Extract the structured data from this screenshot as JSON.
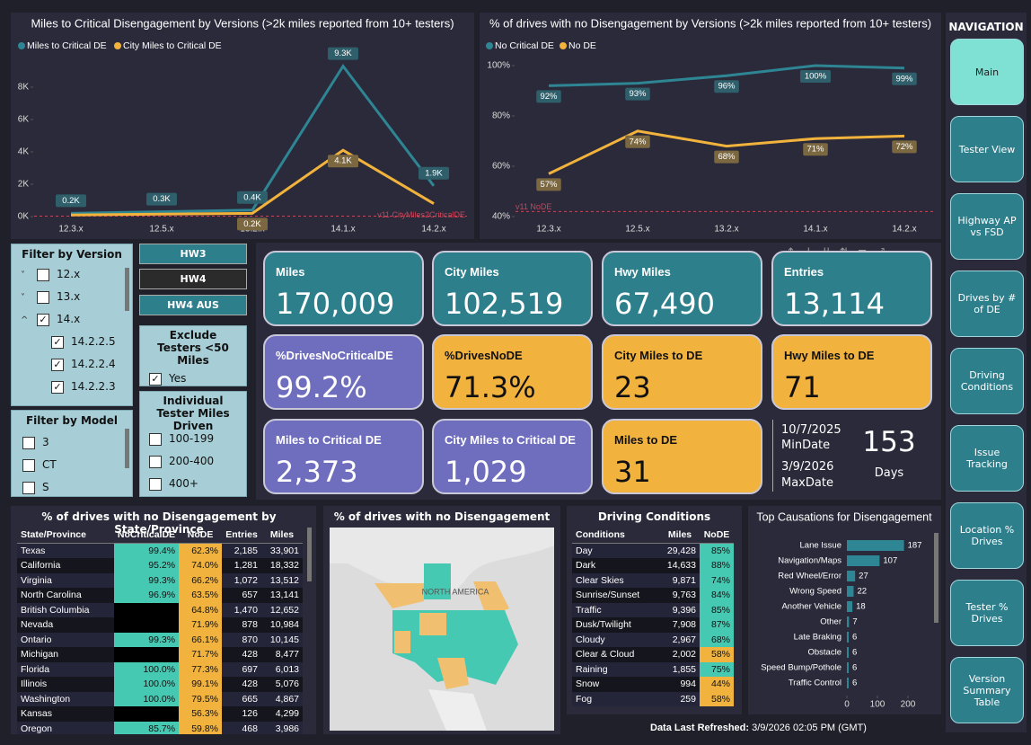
{
  "chart_data": [
    {
      "type": "line",
      "title": "Miles to Critical Disengagement by Versions (>2k miles reported from 10+ testers)",
      "categories": [
        "12.3.x",
        "12.5.x",
        "13.2.x",
        "14.1.x",
        "14.2.x"
      ],
      "series": [
        {
          "name": "Miles to Critical DE",
          "color": "#2e8593",
          "values": [
            200,
            300,
            400,
            9300,
            1900
          ],
          "value_labels": [
            "0.2K",
            "0.3K",
            "0.4K",
            "9.3K",
            "1.9K"
          ]
        },
        {
          "name": "City Miles to Critical DE",
          "color": "#f2b33d",
          "values": [
            100,
            150,
            200,
            4100,
            800
          ],
          "value_labels": [
            null,
            null,
            "0.2K",
            "4.1K",
            null
          ]
        }
      ],
      "ylim": [
        0,
        10000
      ],
      "yticks": [
        {
          "value": 0,
          "label": "0K"
        },
        {
          "value": 2000,
          "label": "2K"
        },
        {
          "value": 4000,
          "label": "4K"
        },
        {
          "value": 6000,
          "label": "6K"
        },
        {
          "value": 8000,
          "label": "8K"
        }
      ],
      "reference_line": {
        "label": "v11 CityMiles2CriticalDE",
        "value": 30,
        "color": "#c8455a"
      }
    },
    {
      "type": "line",
      "title": "% of drives with no Disengagement by Versions (>2k miles reported from 10+ testers)",
      "categories": [
        "12.3.x",
        "12.5.x",
        "13.2.x",
        "14.1.x",
        "14.2.x"
      ],
      "series": [
        {
          "name": "No Critical DE",
          "color": "#2e8593",
          "values": [
            92,
            93,
            96,
            100,
            99
          ],
          "value_labels": [
            "92%",
            "93%",
            "96%",
            "100%",
            "99%"
          ]
        },
        {
          "name": "No DE",
          "color": "#f2b33d",
          "values": [
            57,
            74,
            68,
            71,
            72
          ],
          "value_labels": [
            "57%",
            "74%",
            "68%",
            "71%",
            "72%"
          ]
        }
      ],
      "ylim": [
        40,
        100
      ],
      "yticks": [
        {
          "value": 40,
          "label": "40%"
        },
        {
          "value": 60,
          "label": "60%"
        },
        {
          "value": 80,
          "label": "80%"
        },
        {
          "value": 100,
          "label": "100%"
        }
      ],
      "reference_line": {
        "label": "v11 NoDE",
        "value": 42,
        "color": "#c8455a"
      }
    },
    {
      "type": "hbar",
      "title": "Top Causations for Disengagement",
      "categories": [
        "Lane Issue",
        "Navigation/Maps",
        "Red Wheel/Error",
        "Wrong Speed",
        "Another Vehicle",
        "Other",
        "Late Braking",
        "Obstacle",
        "Speed Bump/Pothole",
        "Traffic Control"
      ],
      "values": [
        187,
        107,
        27,
        22,
        18,
        7,
        6,
        6,
        6,
        6
      ],
      "color": "#2e8593",
      "xlim": [
        0,
        220
      ],
      "xticks": [
        0,
        100,
        200
      ]
    }
  ],
  "map": {
    "title": "% of drives with no Disengagement",
    "label": "NORTH AMERICA"
  },
  "navigation": {
    "title": "NAVIGATION",
    "items": [
      "Main",
      "Tester View",
      "Highway AP vs FSD",
      "Drives by # of DE",
      "Driving Conditions",
      "Issue Tracking",
      "Location % Drives",
      "Tester % Drives",
      "Version Summary Table"
    ]
  },
  "version_filter": {
    "title": "Filter by Version",
    "items": [
      "12.x",
      "13.x",
      "14.x",
      "14.2.2.5",
      "14.2.2.4",
      "14.2.2.3"
    ]
  },
  "model_filter": {
    "title": "Filter by Model",
    "items": [
      "3",
      "CT",
      "S"
    ]
  },
  "hardware": [
    "HW3",
    "HW4",
    "HW4 AUS"
  ],
  "exclude_testers": {
    "title": "Exclude Testers <50 Miles",
    "option": "Yes"
  },
  "tester_miles": {
    "title": "Individual Tester Miles Driven",
    "items": [
      "100-199",
      "200-400",
      "400+"
    ]
  },
  "cards": [
    {
      "label": "Miles",
      "value": "170,009"
    },
    {
      "label": "City Miles",
      "value": "102,519"
    },
    {
      "label": "Hwy Miles",
      "value": "67,490"
    },
    {
      "label": "Entries",
      "value": "13,114"
    },
    {
      "label": "%DrivesNoCriticalDE",
      "value": "99.2%"
    },
    {
      "label": "%DrivesNoDE",
      "value": "71.3%"
    },
    {
      "label": "City Miles to DE",
      "value": "23"
    },
    {
      "label": "Hwy Miles to DE",
      "value": "71"
    },
    {
      "label": "Miles to Critical DE",
      "value": "2,373"
    },
    {
      "label": "City Miles to Critical DE",
      "value": "1,029"
    },
    {
      "label": "Miles to DE",
      "value": "31"
    }
  ],
  "dates": {
    "min": "10/7/2025",
    "min_label": "MinDate",
    "max": "3/9/2026",
    "max_label": "MaxDate",
    "days": "153",
    "days_label": "Days"
  },
  "state_table": {
    "title": "% of drives with no Disengagement by State/Province",
    "columns": [
      "State/Province",
      "NoCriticalDE",
      "NoDE",
      "Entries",
      "Miles"
    ],
    "rows": [
      [
        "Texas",
        "99.4%",
        "62.3%",
        "2,185",
        "33,901"
      ],
      [
        "California",
        "95.2%",
        "74.0%",
        "1,281",
        "18,332"
      ],
      [
        "Virginia",
        "99.3%",
        "66.2%",
        "1,072",
        "13,512"
      ],
      [
        "North Carolina",
        "96.9%",
        "63.5%",
        "657",
        "13,141"
      ],
      [
        "British Columbia",
        null,
        "64.8%",
        "1,470",
        "12,652"
      ],
      [
        "Nevada",
        null,
        "71.9%",
        "878",
        "10,984"
      ],
      [
        "Ontario",
        "99.3%",
        "66.1%",
        "870",
        "10,145"
      ],
      [
        "Michigan",
        null,
        "71.7%",
        "428",
        "8,477"
      ],
      [
        "Florida",
        "100.0%",
        "77.3%",
        "697",
        "6,013"
      ],
      [
        "Illinois",
        "100.0%",
        "99.1%",
        "428",
        "5,076"
      ],
      [
        "Washington",
        "100.0%",
        "79.5%",
        "665",
        "4,867"
      ],
      [
        "Kansas",
        null,
        "56.3%",
        "126",
        "4,299"
      ],
      [
        "Oregon",
        "85.7%",
        "59.8%",
        "468",
        "3,986"
      ]
    ]
  },
  "conditions_table": {
    "title": "Driving Conditions",
    "columns": [
      "Conditions",
      "Miles",
      "NoDE"
    ],
    "rows": [
      [
        "Day",
        "29,428",
        "85%"
      ],
      [
        "Dark",
        "14,633",
        "88%"
      ],
      [
        "Clear Skies",
        "9,871",
        "74%"
      ],
      [
        "Sunrise/Sunset",
        "9,763",
        "84%"
      ],
      [
        "Traffic",
        "9,396",
        "85%"
      ],
      [
        "Dusk/Twilight",
        "7,908",
        "87%"
      ],
      [
        "Cloudy",
        "2,967",
        "68%"
      ],
      [
        "Clear & Cloud",
        "2,002",
        "58%"
      ],
      [
        "Raining",
        "1,855",
        "75%"
      ],
      [
        "Snow",
        "994",
        "44%"
      ],
      [
        "Fog",
        "259",
        "58%"
      ]
    ]
  },
  "footer": {
    "label": "Data Last Refreshed:",
    "value": "3/9/2026 02:05 PM (GMT)"
  }
}
